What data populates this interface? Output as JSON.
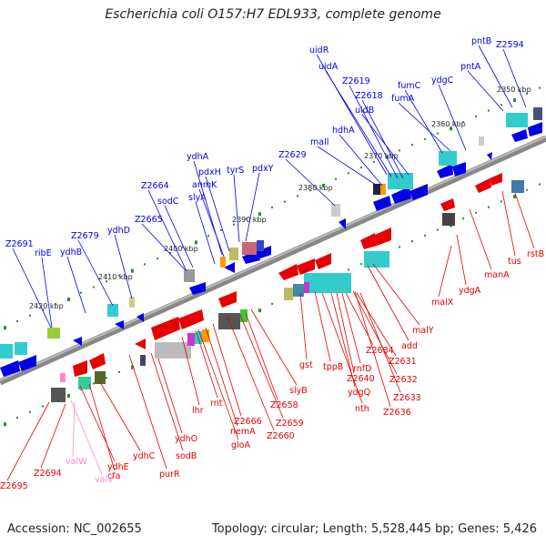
{
  "title": "Escherichia coli O157:H7 EDL933, complete genome",
  "footer": {
    "accession": "Accession: NC_002655",
    "summary": "Topology: circular; Length: 5,528,445 bp; Genes: 5,426"
  },
  "colors": {
    "forward": "#0000e6",
    "reverse": "#e60000",
    "trna": "#ff88cc",
    "axis": "#777777",
    "ticks": "#2e8b2e",
    "cyan": "#33cccc"
  },
  "kbp_labels": [
    "2350 kbp",
    "2360 kbp",
    "2370 kbp",
    "2380 kbp",
    "2390 kbp",
    "2400 kbp",
    "2410 kbp",
    "2420 kbp"
  ],
  "top_labels": [
    "pntB",
    "Z2594",
    "pntA",
    "ydgC",
    "uidR",
    "uidA",
    "Z2619",
    "Z2618",
    "fumC",
    "uidB",
    "fumA",
    "mall",
    "hdhA",
    "Z2629",
    "ydhA",
    "pdxH",
    "tyrS",
    "pdxY",
    "anmK",
    "Z2664",
    "slyA",
    "sodC",
    "Z2665",
    "ydhD",
    "Z2679",
    "Z2691",
    "ribE",
    "ydhB"
  ],
  "bottom_labels": [
    "rstB",
    "tus",
    "manA",
    "ydgA",
    "malX",
    "malY",
    "add",
    "Z2634",
    "Z2631",
    "Z2632",
    "Z2633",
    "Z2636",
    "rnfD",
    "Z2640",
    "ydgQ",
    "nth",
    "tppB",
    "gst",
    "slyB",
    "Z2658",
    "Z2659",
    "Z2660",
    "Z2666",
    "nemA",
    "gloA",
    "rnt",
    "lhr",
    "ydhO",
    "sodB",
    "purR",
    "ydhC",
    "cfa",
    "ydhE",
    "valW",
    "valV",
    "Z2694",
    "Z2695"
  ]
}
